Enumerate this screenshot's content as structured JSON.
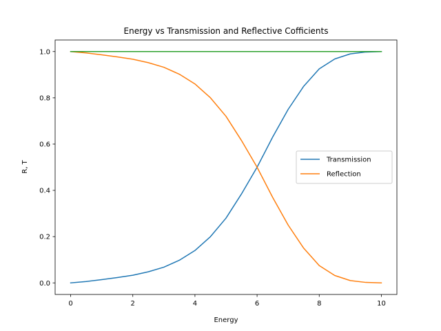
{
  "chart_data": {
    "type": "line",
    "title": "Energy vs Transmission and Reflective Cofficients",
    "xlabel": "Energy",
    "ylabel": "R, T",
    "xlim": [
      -0.5,
      10.5
    ],
    "ylim": [
      -0.05,
      1.05
    ],
    "xticks": [
      0,
      2,
      4,
      6,
      8,
      10
    ],
    "yticks": [
      0.0,
      0.2,
      0.4,
      0.6,
      0.8,
      1.0
    ],
    "xtick_labels": [
      "0",
      "2",
      "4",
      "6",
      "8",
      "10"
    ],
    "ytick_labels": [
      "0.0",
      "0.2",
      "0.4",
      "0.6",
      "0.8",
      "1.0"
    ],
    "grid": false,
    "legend_position": "center-right",
    "x": [
      0,
      0.5,
      1,
      1.5,
      2,
      2.5,
      3,
      3.5,
      4,
      4.5,
      5,
      5.5,
      6,
      6.5,
      7,
      7.5,
      8,
      8.5,
      9,
      9.5,
      10
    ],
    "series": [
      {
        "name": "Transmission",
        "color": "#1f77b4",
        "values": [
          0.0,
          0.006,
          0.014,
          0.023,
          0.033,
          0.048,
          0.068,
          0.098,
          0.14,
          0.2,
          0.28,
          0.385,
          0.5,
          0.63,
          0.75,
          0.85,
          0.925,
          0.968,
          0.99,
          0.998,
          1.0
        ]
      },
      {
        "name": "Reflection",
        "color": "#ff7f0e",
        "values": [
          1.0,
          0.994,
          0.986,
          0.977,
          0.967,
          0.952,
          0.932,
          0.902,
          0.86,
          0.8,
          0.72,
          0.615,
          0.5,
          0.37,
          0.25,
          0.15,
          0.075,
          0.032,
          0.01,
          0.002,
          0.0
        ]
      },
      {
        "color": "#2ca02c",
        "values": [
          1,
          1,
          1,
          1,
          1,
          1,
          1,
          1,
          1,
          1,
          1,
          1,
          1,
          1,
          1,
          1,
          1,
          1,
          1,
          1,
          1
        ]
      }
    ]
  }
}
